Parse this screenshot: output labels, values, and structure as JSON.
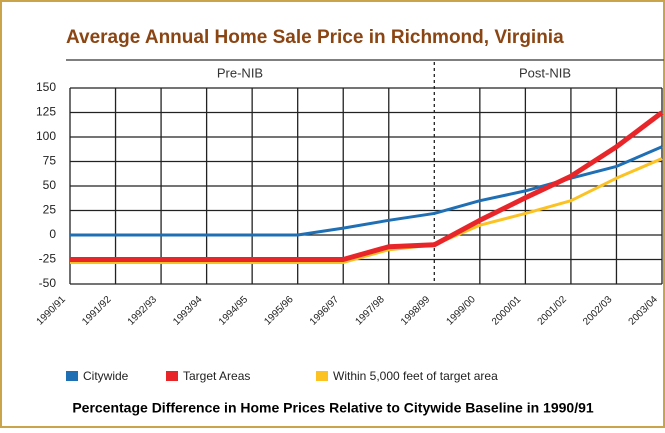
{
  "chart_data": {
    "type": "line",
    "title": "Average Annual Home Sale Price in Richmond, Virginia",
    "subtitle": "Percentage Difference in Home Prices Relative to Citywide Baseline in 1990/91",
    "annotations": [
      "Pre-NIB",
      "Post-NIB"
    ],
    "categories": [
      "1990/91",
      "1991/92",
      "1992/93",
      "1993/94",
      "1994/95",
      "1995/96",
      "1996/97",
      "1997/98",
      "1998/99",
      "1999/00",
      "2000/01",
      "2001/02",
      "2002/03",
      "2003/04"
    ],
    "series": [
      {
        "name": "Citywide",
        "color": "#1f6fb5",
        "values": [
          0,
          0,
          0,
          0,
          0,
          0,
          7,
          15,
          22,
          35,
          45,
          58,
          70,
          90
        ]
      },
      {
        "name": "Target Areas",
        "color": "#e8262a",
        "values": [
          -25,
          -25,
          -25,
          -25,
          -25,
          -25,
          -25,
          -12,
          -10,
          15,
          38,
          60,
          90,
          125
        ]
      },
      {
        "name": "Within 5,000 feet of target area",
        "color": "#fcc221",
        "values": [
          -28,
          -28,
          -28,
          -28,
          -28,
          -28,
          -28,
          -15,
          -10,
          10,
          22,
          35,
          58,
          78
        ]
      }
    ],
    "ylim": [
      -50,
      150
    ],
    "yticks": [
      150,
      125,
      100,
      75,
      50,
      25,
      0,
      -25,
      -50
    ],
    "grid": true
  }
}
